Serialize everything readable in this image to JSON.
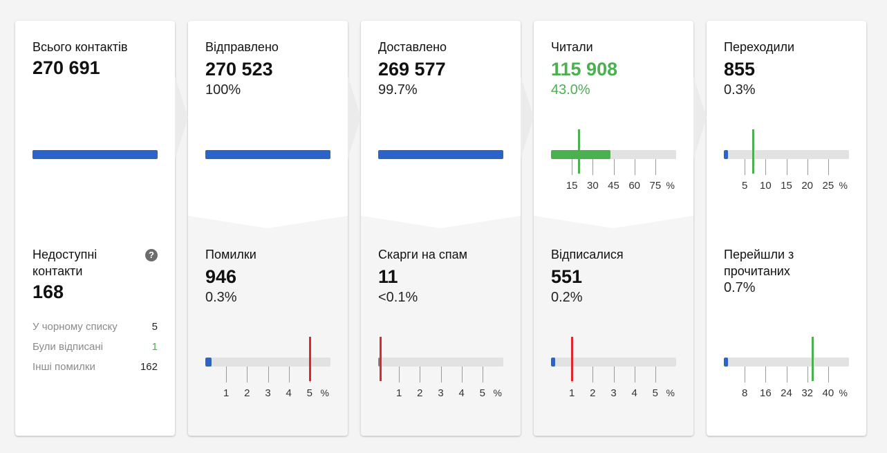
{
  "colors": {
    "accent_blue": "#2c63c9",
    "green": "#4caf50",
    "red": "#e0262c",
    "track": "#e2e2e2"
  },
  "cards": [
    {
      "top": {
        "label": "Всього контактів",
        "value": "270 691"
      },
      "bottom": {
        "label": "Недоступні контакти",
        "value": "168",
        "help_icon": "question-circle-icon",
        "items": [
          {
            "label": "У чорному списку",
            "value": "5"
          },
          {
            "label": "Були відписані",
            "value": "1"
          },
          {
            "label": "Інші помилки",
            "value": "162"
          }
        ]
      }
    },
    {
      "top": {
        "label": "Відправлено",
        "value": "270 523",
        "pct": "100%"
      },
      "bottom": {
        "label": "Помилки",
        "value": "946",
        "pct": "0.3%",
        "gauge": {
          "ticks": [
            "1",
            "2",
            "3",
            "4",
            "5"
          ],
          "unit": "%",
          "max": 6,
          "fill_pct": 0.3,
          "marker_pct": 5,
          "fill_color": "#2c63c9",
          "marker_color": "#e0262c"
        }
      }
    },
    {
      "top": {
        "label": "Доставлено",
        "value": "269 577",
        "pct": "99.7%"
      },
      "bottom": {
        "label": "Скарги на спам",
        "value": "11",
        "pct": "<0.1%",
        "gauge": {
          "ticks": [
            "1",
            "2",
            "3",
            "4",
            "5"
          ],
          "unit": "%",
          "max": 6,
          "fill_pct": 0.0,
          "marker_pct": 0.1,
          "fill_color": "#2c63c9",
          "marker_color": "#e0262c"
        }
      }
    },
    {
      "top": {
        "label": "Читали",
        "value": "115 908",
        "pct": "43.0%",
        "value_color": "green",
        "gauge": {
          "ticks": [
            "15",
            "30",
            "45",
            "60",
            "75"
          ],
          "unit": "%",
          "max": 90,
          "fill_pct": 43.0,
          "marker_pct": 20,
          "fill_color": "#4caf50",
          "marker_color": "#4caf50"
        }
      },
      "bottom": {
        "label": "Відписалися",
        "value": "551",
        "pct": "0.2%",
        "gauge": {
          "ticks": [
            "1",
            "2",
            "3",
            "4",
            "5"
          ],
          "unit": "%",
          "max": 6,
          "fill_pct": 0.2,
          "marker_pct": 1,
          "fill_color": "#2c63c9",
          "marker_color": "#e0262c"
        }
      }
    },
    {
      "top": {
        "label": "Переходили",
        "value": "855",
        "pct": "0.3%",
        "gauge": {
          "ticks": [
            "5",
            "10",
            "15",
            "20",
            "25"
          ],
          "unit": "%",
          "max": 30,
          "fill_pct": 0.3,
          "marker_pct": 7,
          "fill_color": "#2c63c9",
          "marker_color": "#4caf50"
        }
      },
      "bottom": {
        "label": "Перейшли з прочитаних",
        "value": "",
        "pct": "0.7%",
        "gauge": {
          "ticks": [
            "8",
            "16",
            "24",
            "32",
            "40"
          ],
          "unit": "%",
          "max": 48,
          "fill_pct": 0.7,
          "marker_pct": 34,
          "fill_color": "#2c63c9",
          "marker_color": "#4caf50"
        }
      }
    }
  ]
}
